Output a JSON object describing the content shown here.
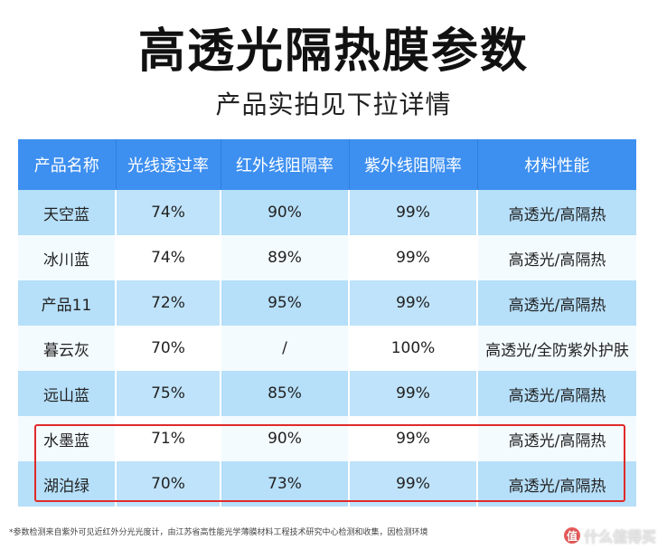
{
  "title": "高透光隔热膜参数",
  "subtitle": "产品实拍见下拉详情",
  "table": {
    "headers": [
      "产品名称",
      "光线透过率",
      "红外线阻隔率",
      "紫外线阻隔率",
      "材料性能"
    ],
    "rows": [
      [
        "天空蓝",
        "74%",
        "90%",
        "99%",
        "高透光/高隔热"
      ],
      [
        "冰川蓝",
        "74%",
        "89%",
        "99%",
        "高透光/高隔热"
      ],
      [
        "产品11",
        "72%",
        "95%",
        "99%",
        "高透光/高隔热"
      ],
      [
        "暮云灰",
        "70%",
        "/",
        "100%",
        "高透光/全防紫外护肤"
      ],
      [
        "远山蓝",
        "75%",
        "85%",
        "99%",
        "高透光/高隔热"
      ],
      [
        "水墨蓝",
        "71%",
        "90%",
        "99%",
        "高透光/高隔热"
      ],
      [
        "湖泊绿",
        "70%",
        "73%",
        "99%",
        "高透光/高隔热"
      ]
    ]
  },
  "footnote": "*参数检测来自紫外可见近红外分光光度计，由江苏省高性能光学薄膜材料工程技术研究中心检测和收集，因检测环境",
  "watermark": {
    "logo": "值",
    "text": "什么值得买"
  },
  "colors": {
    "header_bg": "#3d8ff0",
    "row_blue": "#bfe3fa",
    "highlight_border": "#e02a2a"
  }
}
